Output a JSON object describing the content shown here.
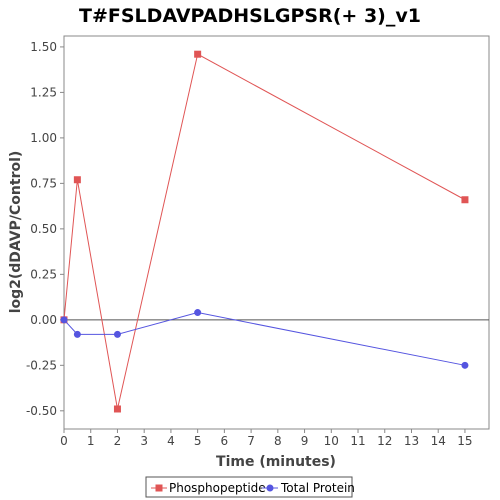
{
  "chart_data": {
    "type": "line",
    "title": "T#FSLDAVPADHSLGPSR(+ 3)_v1",
    "xlabel": "Time (minutes)",
    "ylabel": "log2(dDAVP/Control)",
    "xlim": [
      0,
      15.9
    ],
    "ylim": [
      -0.6,
      1.56
    ],
    "x_ticks": [
      "0",
      "1",
      "2",
      "3",
      "4",
      "5",
      "6",
      "7",
      "8",
      "9",
      "10",
      "11",
      "12",
      "13",
      "14",
      "15"
    ],
    "y_ticks": [
      "1.50",
      "1.25",
      "1.00",
      "0.75",
      "0.50",
      "0.25",
      "0.00",
      "-0.25",
      "-0.50"
    ],
    "grid": false,
    "legend_position": "bottom",
    "zero_line": true,
    "series": [
      {
        "name": "Phosphopeptide",
        "color": "#e05555",
        "marker": "square",
        "x": [
          0,
          0.5,
          2,
          5,
          15
        ],
        "y": [
          0.0,
          0.77,
          -0.49,
          1.46,
          0.66
        ]
      },
      {
        "name": "Total Protein",
        "color": "#5555e0",
        "marker": "circle",
        "x": [
          0,
          0.5,
          2,
          5,
          15
        ],
        "y": [
          0.0,
          -0.08,
          -0.08,
          0.04,
          -0.25
        ]
      }
    ]
  }
}
